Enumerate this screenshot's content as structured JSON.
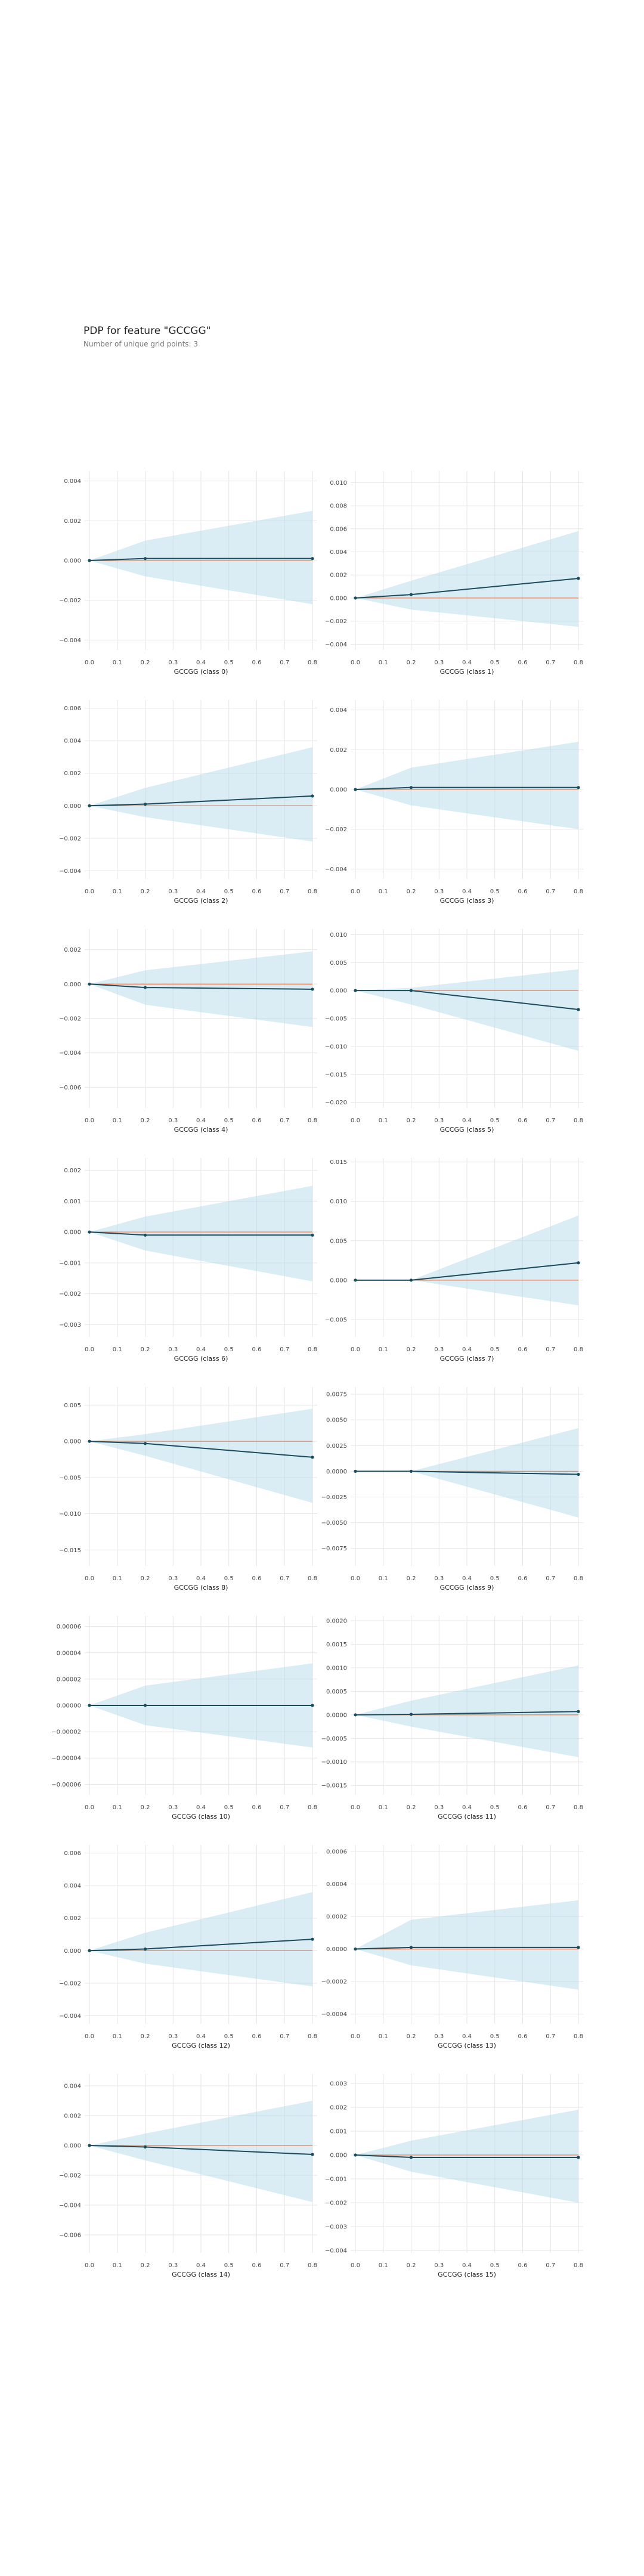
{
  "header": {
    "title": "PDP for feature \"GCCGG\"",
    "subtitle": "Number of unique grid points: 3"
  },
  "colors": {
    "band": "#add8e6",
    "line": "#1a4c5e",
    "zero_line": "#e8805a",
    "grid": "#e6e6e6"
  },
  "chart_data": [
    {
      "type": "line",
      "xlabel": "GCCGG (class 0)",
      "x": [
        0.0,
        0.2,
        0.8
      ],
      "y": [
        0.0,
        0.0001,
        0.0001
      ],
      "upper": [
        0.0,
        0.001,
        0.0025
      ],
      "lower": [
        0.0,
        -0.0008,
        -0.0022
      ],
      "xticks": [
        "0.0",
        "0.1",
        "0.2",
        "0.3",
        "0.4",
        "0.5",
        "0.6",
        "0.7",
        "0.8"
      ],
      "ylim": [
        -0.0045,
        0.0045
      ],
      "yticks": [
        -0.004,
        -0.002,
        0.0,
        0.002,
        0.004
      ],
      "yticklabels": [
        "−0.004",
        "−0.002",
        "0.000",
        "0.002",
        "0.004"
      ]
    },
    {
      "type": "line",
      "xlabel": "GCCGG (class 1)",
      "x": [
        0.0,
        0.2,
        0.8
      ],
      "y": [
        0.0,
        0.0003,
        0.0017
      ],
      "upper": [
        0.0,
        0.0015,
        0.0058
      ],
      "lower": [
        0.0,
        -0.001,
        -0.0025
      ],
      "xticks": [
        "0.0",
        "0.1",
        "0.2",
        "0.3",
        "0.4",
        "0.5",
        "0.6",
        "0.7",
        "0.8"
      ],
      "ylim": [
        -0.0045,
        0.011
      ],
      "yticks": [
        -0.004,
        -0.002,
        0.0,
        0.002,
        0.004,
        0.006,
        0.008,
        0.01
      ],
      "yticklabels": [
        "−0.004",
        "−0.002",
        "0.000",
        "0.002",
        "0.004",
        "0.006",
        "0.008",
        "0.010"
      ]
    },
    {
      "type": "line",
      "xlabel": "GCCGG (class 2)",
      "x": [
        0.0,
        0.2,
        0.8
      ],
      "y": [
        0.0,
        0.0001,
        0.0006
      ],
      "upper": [
        0.0,
        0.0011,
        0.0036
      ],
      "lower": [
        0.0,
        -0.0007,
        -0.0022
      ],
      "xticks": [
        "0.0",
        "0.1",
        "0.2",
        "0.3",
        "0.4",
        "0.5",
        "0.6",
        "0.7",
        "0.8"
      ],
      "ylim": [
        -0.0045,
        0.0065
      ],
      "yticks": [
        -0.004,
        -0.002,
        0.0,
        0.002,
        0.004,
        0.006
      ],
      "yticklabels": [
        "−0.004",
        "−0.002",
        "0.000",
        "0.002",
        "0.004",
        "0.006"
      ]
    },
    {
      "type": "line",
      "xlabel": "GCCGG (class 3)",
      "x": [
        0.0,
        0.2,
        0.8
      ],
      "y": [
        0.0,
        0.0001,
        0.0001
      ],
      "upper": [
        0.0,
        0.0011,
        0.0024
      ],
      "lower": [
        0.0,
        -0.0008,
        -0.002
      ],
      "xticks": [
        "0.0",
        "0.1",
        "0.2",
        "0.3",
        "0.4",
        "0.5",
        "0.6",
        "0.7",
        "0.8"
      ],
      "ylim": [
        -0.0045,
        0.0045
      ],
      "yticks": [
        -0.004,
        -0.002,
        0.0,
        0.002,
        0.004
      ],
      "yticklabels": [
        "−0.004",
        "−0.002",
        "0.000",
        "0.002",
        "0.004"
      ]
    },
    {
      "type": "line",
      "xlabel": "GCCGG (class 4)",
      "x": [
        0.0,
        0.2,
        0.8
      ],
      "y": [
        0.0,
        -0.0002,
        -0.0003
      ],
      "upper": [
        0.0,
        0.0008,
        0.0019
      ],
      "lower": [
        0.0,
        -0.0012,
        -0.0025
      ],
      "xticks": [
        "0.0",
        "0.1",
        "0.2",
        "0.3",
        "0.4",
        "0.5",
        "0.6",
        "0.7",
        "0.8"
      ],
      "ylim": [
        -0.0072,
        0.0032
      ],
      "yticks": [
        -0.006,
        -0.004,
        -0.002,
        0.0,
        0.002
      ],
      "yticklabels": [
        "−0.006",
        "−0.004",
        "−0.002",
        "0.000",
        "0.002"
      ]
    },
    {
      "type": "line",
      "xlabel": "GCCGG (class 5)",
      "x": [
        0.0,
        0.2,
        0.8
      ],
      "y": [
        0.0,
        0.0,
        -0.0034
      ],
      "upper": [
        0.0,
        0.0005,
        0.0038
      ],
      "lower": [
        0.0,
        -0.0025,
        -0.0108
      ],
      "xticks": [
        "0.0",
        "0.1",
        "0.2",
        "0.3",
        "0.4",
        "0.5",
        "0.6",
        "0.7",
        "0.8"
      ],
      "ylim": [
        -0.021,
        0.011
      ],
      "yticks": [
        -0.02,
        -0.015,
        -0.01,
        -0.005,
        0.0,
        0.005,
        0.01
      ],
      "yticklabels": [
        "−0.020",
        "−0.015",
        "−0.010",
        "−0.005",
        "0.000",
        "0.005",
        "0.010"
      ]
    },
    {
      "type": "line",
      "xlabel": "GCCGG (class 6)",
      "x": [
        0.0,
        0.2,
        0.8
      ],
      "y": [
        0.0,
        -0.0001,
        -0.0001
      ],
      "upper": [
        0.0,
        0.0005,
        0.0015
      ],
      "lower": [
        0.0,
        -0.0006,
        -0.0016
      ],
      "xticks": [
        "0.0",
        "0.1",
        "0.2",
        "0.3",
        "0.4",
        "0.5",
        "0.6",
        "0.7",
        "0.8"
      ],
      "ylim": [
        -0.0034,
        0.0024
      ],
      "yticks": [
        -0.003,
        -0.002,
        -0.001,
        0.0,
        0.001,
        0.002
      ],
      "yticklabels": [
        "−0.003",
        "−0.002",
        "−0.001",
        "0.000",
        "0.001",
        "0.002"
      ]
    },
    {
      "type": "line",
      "xlabel": "GCCGG (class 7)",
      "x": [
        0.0,
        0.2,
        0.8
      ],
      "y": [
        0.0,
        0.0,
        0.0022
      ],
      "upper": [
        0.0,
        0.0,
        0.0082
      ],
      "lower": [
        0.0,
        0.0,
        -0.0032
      ],
      "xticks": [
        "0.0",
        "0.1",
        "0.2",
        "0.3",
        "0.4",
        "0.5",
        "0.6",
        "0.7",
        "0.8"
      ],
      "ylim": [
        -0.0072,
        0.0155
      ],
      "yticks": [
        -0.005,
        0.0,
        0.005,
        0.01,
        0.015
      ],
      "yticklabels": [
        "−0.005",
        "0.000",
        "0.005",
        "0.010",
        "0.015"
      ]
    },
    {
      "type": "line",
      "xlabel": "GCCGG (class 8)",
      "x": [
        0.0,
        0.2,
        0.8
      ],
      "y": [
        0.0,
        -0.0003,
        -0.0022
      ],
      "upper": [
        0.0,
        0.001,
        0.0045
      ],
      "lower": [
        0.0,
        -0.002,
        -0.0085
      ],
      "xticks": [
        "0.0",
        "0.1",
        "0.2",
        "0.3",
        "0.4",
        "0.5",
        "0.6",
        "0.7",
        "0.8"
      ],
      "ylim": [
        -0.0172,
        0.0075
      ],
      "yticks": [
        -0.015,
        -0.01,
        -0.005,
        0.0,
        0.005
      ],
      "yticklabels": [
        "−0.015",
        "−0.010",
        "−0.005",
        "0.000",
        "0.005"
      ]
    },
    {
      "type": "line",
      "xlabel": "GCCGG (class 9)",
      "x": [
        0.0,
        0.2,
        0.8
      ],
      "y": [
        0.0,
        0.0,
        -0.0003
      ],
      "upper": [
        0.0,
        0.0,
        0.0042
      ],
      "lower": [
        0.0,
        0.0,
        -0.0045
      ],
      "xticks": [
        "0.0",
        "0.1",
        "0.2",
        "0.3",
        "0.4",
        "0.5",
        "0.6",
        "0.7",
        "0.8"
      ],
      "ylim": [
        -0.0092,
        0.0082
      ],
      "yticks": [
        -0.0075,
        -0.005,
        -0.0025,
        0.0,
        0.0025,
        0.005,
        0.0075
      ],
      "yticklabels": [
        "−0.0075",
        "−0.0050",
        "−0.0025",
        "0.0000",
        "0.0025",
        "0.0050",
        "0.0075"
      ]
    },
    {
      "type": "line",
      "xlabel": "GCCGG (class 10)",
      "x": [
        0.0,
        0.2,
        0.8
      ],
      "y": [
        0.0,
        0.0,
        0.0
      ],
      "upper": [
        0.0,
        1.5e-05,
        3.2e-05
      ],
      "lower": [
        0.0,
        -1.5e-05,
        -3.2e-05
      ],
      "xticks": [
        "0.0",
        "0.1",
        "0.2",
        "0.3",
        "0.4",
        "0.5",
        "0.6",
        "0.7",
        "0.8"
      ],
      "ylim": [
        -6.8e-05,
        6.8e-05
      ],
      "yticks": [
        -6e-05,
        -4e-05,
        -2e-05,
        0.0,
        2e-05,
        4e-05,
        6e-05
      ],
      "yticklabels": [
        "−0.00006",
        "−0.00004",
        "−0.00002",
        "0.00000",
        "0.00002",
        "0.00004",
        "0.00006"
      ]
    },
    {
      "type": "line",
      "xlabel": "GCCGG (class 11)",
      "x": [
        0.0,
        0.2,
        0.8
      ],
      "y": [
        0.0,
        1e-05,
        7e-05
      ],
      "upper": [
        0.0,
        0.0003,
        0.00105
      ],
      "lower": [
        0.0,
        -0.00025,
        -0.0009
      ],
      "xticks": [
        "0.0",
        "0.1",
        "0.2",
        "0.3",
        "0.4",
        "0.5",
        "0.6",
        "0.7",
        "0.8"
      ],
      "ylim": [
        -0.0017,
        0.0021
      ],
      "yticks": [
        -0.0015,
        -0.001,
        -0.0005,
        0.0,
        0.0005,
        0.001,
        0.0015,
        0.002
      ],
      "yticklabels": [
        "−0.0015",
        "−0.0010",
        "−0.0005",
        "0.0000",
        "0.0005",
        "0.0010",
        "0.0015",
        "0.0020"
      ]
    },
    {
      "type": "line",
      "xlabel": "GCCGG (class 12)",
      "x": [
        0.0,
        0.2,
        0.8
      ],
      "y": [
        0.0,
        0.0001,
        0.0007
      ],
      "upper": [
        0.0,
        0.0011,
        0.0036
      ],
      "lower": [
        0.0,
        -0.0008,
        -0.0022
      ],
      "xticks": [
        "0.0",
        "0.1",
        "0.2",
        "0.3",
        "0.4",
        "0.5",
        "0.6",
        "0.7",
        "0.8"
      ],
      "ylim": [
        -0.0045,
        0.0065
      ],
      "yticks": [
        -0.004,
        -0.002,
        0.0,
        0.002,
        0.004,
        0.006
      ],
      "yticklabels": [
        "−0.004",
        "−0.002",
        "0.000",
        "0.002",
        "0.004",
        "0.006"
      ]
    },
    {
      "type": "line",
      "xlabel": "GCCGG (class 13)",
      "x": [
        0.0,
        0.2,
        0.8
      ],
      "y": [
        0.0,
        1e-05,
        1e-05
      ],
      "upper": [
        0.0,
        0.00018,
        0.0003
      ],
      "lower": [
        0.0,
        -0.0001,
        -0.00025
      ],
      "xticks": [
        "0.0",
        "0.1",
        "0.2",
        "0.3",
        "0.4",
        "0.5",
        "0.6",
        "0.7",
        "0.8"
      ],
      "ylim": [
        -0.00046,
        0.00064
      ],
      "yticks": [
        -0.0004,
        -0.0002,
        0.0,
        0.0002,
        0.0004,
        0.0006
      ],
      "yticklabels": [
        "−0.0004",
        "−0.0002",
        "0.0000",
        "0.0002",
        "0.0004",
        "0.0006"
      ]
    },
    {
      "type": "line",
      "xlabel": "GCCGG (class 14)",
      "x": [
        0.0,
        0.2,
        0.8
      ],
      "y": [
        0.0,
        -0.0001,
        -0.0006
      ],
      "upper": [
        0.0,
        0.0008,
        0.003
      ],
      "lower": [
        0.0,
        -0.001,
        -0.0038
      ],
      "xticks": [
        "0.0",
        "0.1",
        "0.2",
        "0.3",
        "0.4",
        "0.5",
        "0.6",
        "0.7",
        "0.8"
      ],
      "ylim": [
        -0.0072,
        0.0048
      ],
      "yticks": [
        -0.006,
        -0.004,
        -0.002,
        0.0,
        0.002,
        0.004
      ],
      "yticklabels": [
        "−0.006",
        "−0.004",
        "−0.002",
        "0.000",
        "0.002",
        "0.004"
      ]
    },
    {
      "type": "line",
      "xlabel": "GCCGG (class 15)",
      "x": [
        0.0,
        0.2,
        0.8
      ],
      "y": [
        0.0,
        -0.0001,
        -0.0001
      ],
      "upper": [
        0.0,
        0.0006,
        0.0019
      ],
      "lower": [
        0.0,
        -0.0007,
        -0.002
      ],
      "xticks": [
        "0.0",
        "0.1",
        "0.2",
        "0.3",
        "0.4",
        "0.5",
        "0.6",
        "0.7",
        "0.8"
      ],
      "ylim": [
        -0.0041,
        0.0034
      ],
      "yticks": [
        -0.004,
        -0.003,
        -0.002,
        -0.001,
        0.0,
        0.001,
        0.002,
        0.003
      ],
      "yticklabels": [
        "−0.004",
        "−0.003",
        "−0.002",
        "−0.001",
        "0.000",
        "0.001",
        "0.002",
        "0.003"
      ]
    }
  ]
}
